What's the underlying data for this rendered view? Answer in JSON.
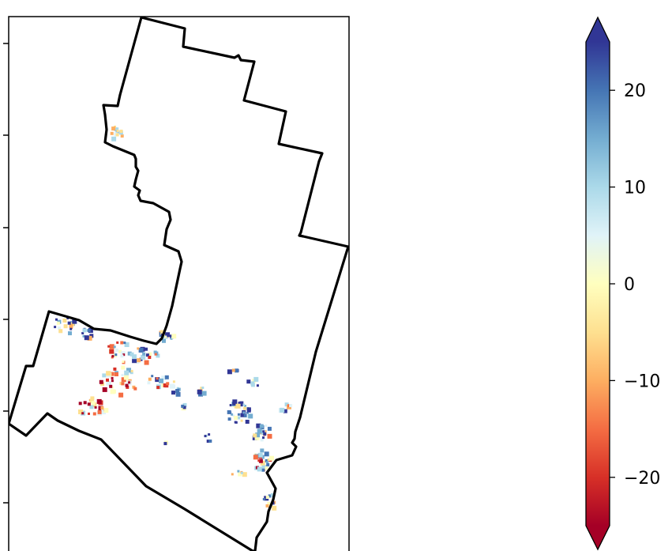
{
  "map": {
    "boundary_color": "#000000",
    "frame_color": "#000000",
    "background": "#ffffff"
  },
  "colorbar": {
    "cmap": "RdYlBu",
    "vmin": -25,
    "vmax": 25,
    "extend": "both",
    "colors": [
      "#a50026",
      "#d73027",
      "#f46d43",
      "#fdae61",
      "#fee090",
      "#ffffbf",
      "#e0f3f8",
      "#abd9e9",
      "#74add1",
      "#4575b4",
      "#313695"
    ],
    "ticks": [
      {
        "value": 20,
        "label": "20"
      },
      {
        "value": 10,
        "label": "10"
      },
      {
        "value": 0,
        "label": "0"
      },
      {
        "value": -10,
        "label": "−10"
      },
      {
        "value": -20,
        "label": "−20"
      }
    ]
  }
}
